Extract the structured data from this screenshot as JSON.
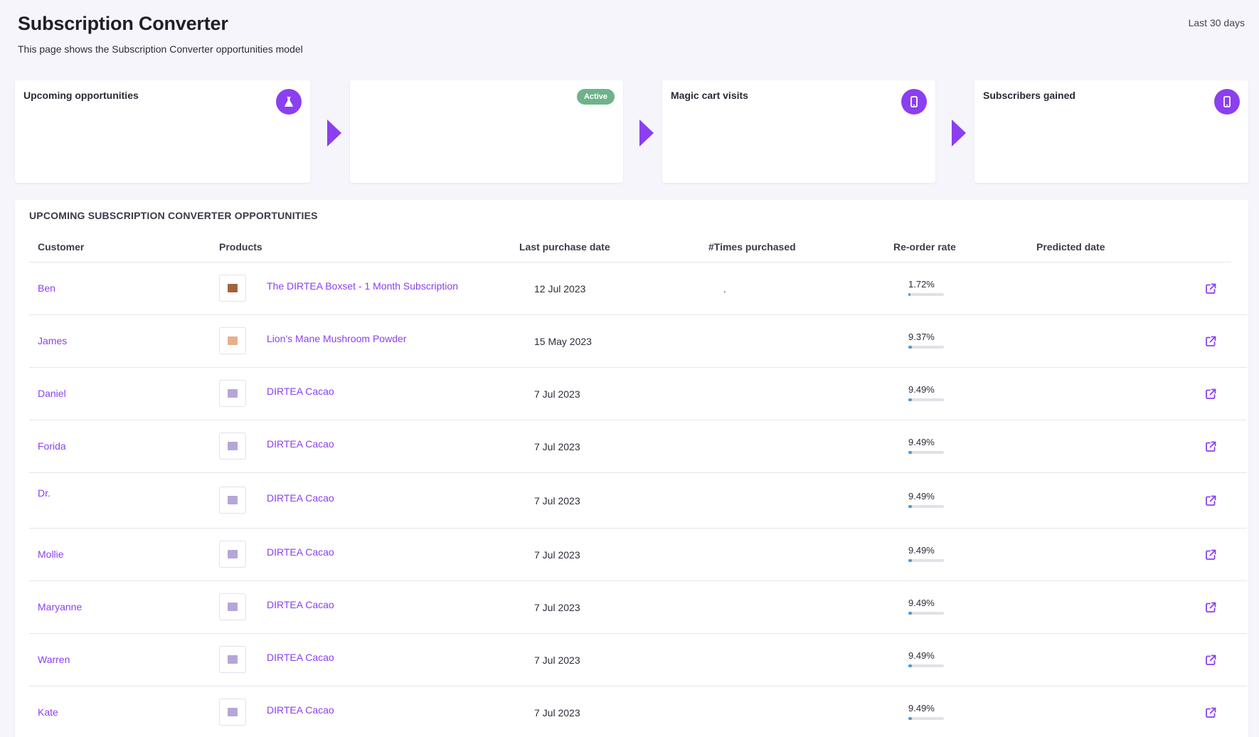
{
  "page": {
    "title": "Subscription Converter",
    "subtitle": "This page shows the Subscription Converter opportunities model",
    "date_range": "Last 30 days"
  },
  "cards": [
    {
      "label": "Upcoming opportunities",
      "icon": "flask-icon"
    },
    {
      "label": "",
      "badge": "Active"
    },
    {
      "label": "Magic cart visits",
      "icon": "phone-icon"
    },
    {
      "label": "Subscribers gained",
      "icon": "phone-icon"
    }
  ],
  "table": {
    "title": "UPCOMING SUBSCRIPTION CONVERTER OPPORTUNITIES",
    "columns": [
      "Customer",
      "Products",
      "Last purchase date",
      "#Times purchased",
      "Re-order rate",
      "Predicted date"
    ],
    "rows": [
      {
        "customer": "Ben",
        "product": "The DIRTEA Boxset - 1 Month Subscription",
        "last_purchase": "12 Jul 2023",
        "times": ".",
        "reorder_rate": "1.72%",
        "reorder_value": 0.0172,
        "thumb_color": "#a0643c"
      },
      {
        "customer": "James",
        "product": "Lion's Mane Mushroom Powder",
        "last_purchase": "15 May 2023",
        "times": "",
        "reorder_rate": "9.37%",
        "reorder_value": 0.0937,
        "thumb_color": "#e8b08a"
      },
      {
        "customer": "Daniel",
        "product": "DIRTEA Cacao",
        "last_purchase": "7 Jul 2023",
        "times": "",
        "reorder_rate": "9.49%",
        "reorder_value": 0.0949,
        "thumb_color": "#b6a6d8"
      },
      {
        "customer": "Forida",
        "product": "DIRTEA Cacao",
        "last_purchase": "7 Jul 2023",
        "times": "",
        "reorder_rate": "9.49%",
        "reorder_value": 0.0949,
        "thumb_color": "#b6a6d8"
      },
      {
        "customer": "Dr.",
        "product": "DIRTEA Cacao",
        "last_purchase": "7 Jul 2023",
        "times": "",
        "reorder_rate": "9.49%",
        "reorder_value": 0.0949,
        "thumb_color": "#b6a6d8"
      },
      {
        "customer": "Mollie",
        "product": "DIRTEA Cacao",
        "last_purchase": "7 Jul 2023",
        "times": "",
        "reorder_rate": "9.49%",
        "reorder_value": 0.0949,
        "thumb_color": "#b6a6d8"
      },
      {
        "customer": "Maryanne",
        "product": "DIRTEA Cacao",
        "last_purchase": "7 Jul 2023",
        "times": "",
        "reorder_rate": "9.49%",
        "reorder_value": 0.0949,
        "thumb_color": "#b6a6d8"
      },
      {
        "customer": "Warren",
        "product": "DIRTEA Cacao",
        "last_purchase": "7 Jul 2023",
        "times": "",
        "reorder_rate": "9.49%",
        "reorder_value": 0.0949,
        "thumb_color": "#b6a6d8"
      },
      {
        "customer": "Kate",
        "product": "DIRTEA Cacao",
        "last_purchase": "7 Jul 2023",
        "times": "",
        "reorder_rate": "9.49%",
        "reorder_value": 0.0949,
        "thumb_color": "#b6a6d8"
      }
    ]
  },
  "colors": {
    "accent": "#8b3ff0",
    "active_badge": "#6fb38a",
    "rate_bar": "#4a9ad4"
  }
}
